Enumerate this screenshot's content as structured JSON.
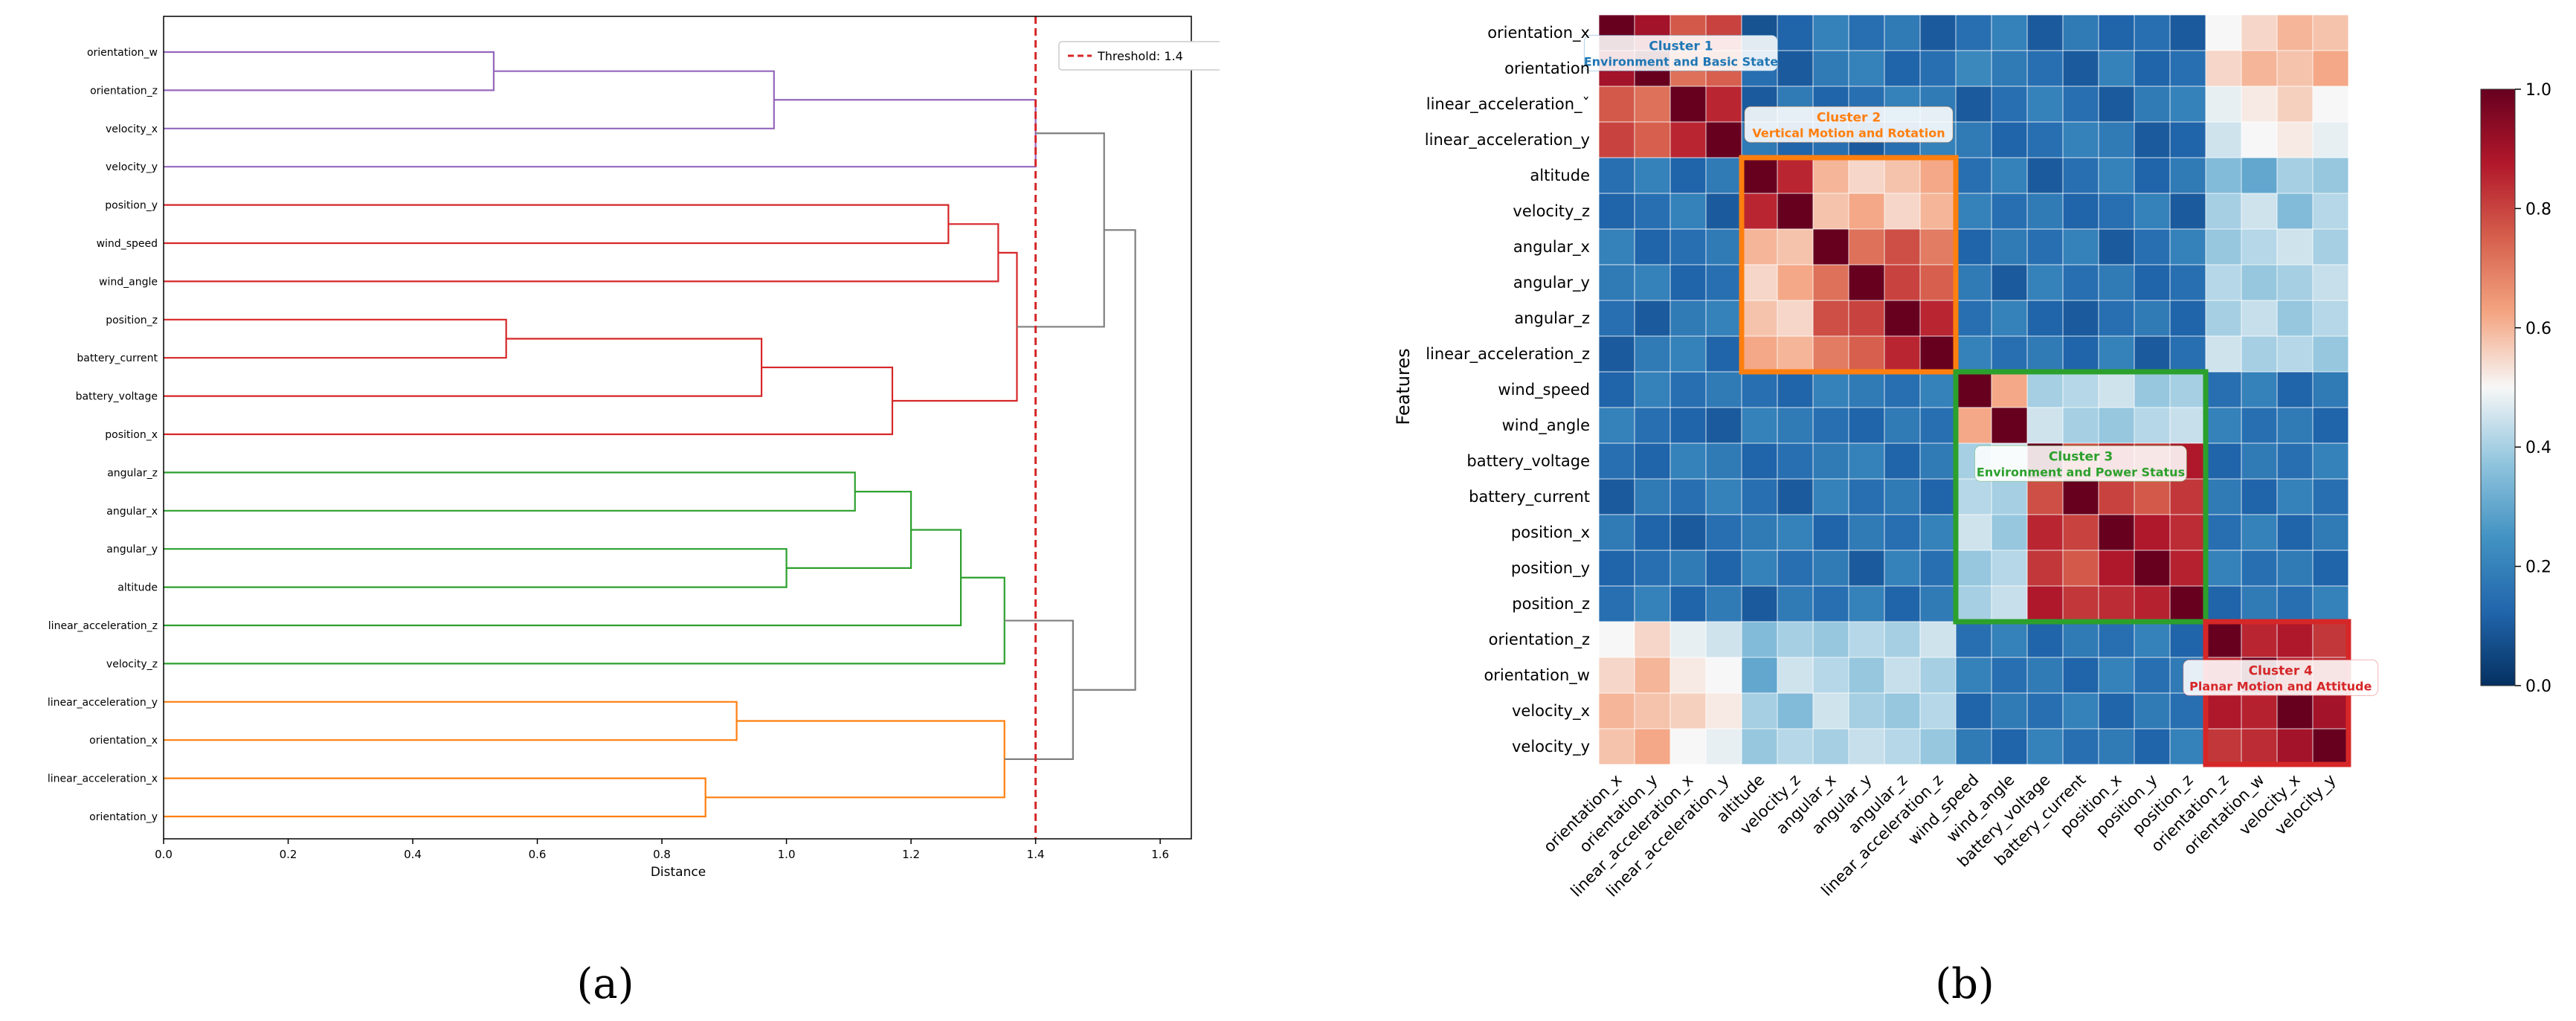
{
  "colors": {
    "cluster1": "#ff7f0e",
    "cluster2": "#d62728",
    "cluster3": "#2ca02c",
    "cluster4": "#9467bd",
    "link": "#7f7f7f",
    "threshold": "#d62728",
    "hm_cluster1": "#1f77b4",
    "hm_cluster2": "#ff7f0e",
    "hm_cluster3": "#2ca02c",
    "hm_cluster4": "#d62728"
  },
  "captions": {
    "a": "(a)",
    "b": "(b)"
  },
  "chart_data": [
    {
      "type": "dendrogram",
      "xlabel": "Distance",
      "xlim": [
        0,
        1.65
      ],
      "xticks": [
        0.0,
        0.2,
        0.4,
        0.6,
        0.8,
        1.0,
        1.2,
        1.4,
        1.6
      ],
      "threshold": 1.4,
      "legend": {
        "label": "Threshold: 1.4",
        "location": "top-right"
      },
      "leaves": [
        "orientation_w",
        "orientation_z",
        "velocity_x",
        "velocity_y",
        "position_y",
        "wind_speed",
        "wind_angle",
        "position_z",
        "battery_current",
        "battery_voltage",
        "position_x",
        "angular_z",
        "angular_x",
        "angular_y",
        "altitude",
        "linear_acceleration_z",
        "velocity_z",
        "linear_acceleration_y",
        "orientation_x",
        "linear_acceleration_x",
        "orientation_y"
      ],
      "merges": [
        {
          "id": "A",
          "children": [
            "orientation_w",
            "orientation_z"
          ],
          "distance": 0.53,
          "color": "cluster4"
        },
        {
          "id": "B",
          "children": [
            "A",
            "velocity_x"
          ],
          "distance": 0.98,
          "color": "cluster4"
        },
        {
          "id": "C",
          "children": [
            "B",
            "velocity_y"
          ],
          "distance": 1.4,
          "color": "cluster4"
        },
        {
          "id": "D",
          "children": [
            "position_y",
            "wind_speed"
          ],
          "distance": 1.26,
          "color": "cluster2"
        },
        {
          "id": "E",
          "children": [
            "D",
            "wind_angle"
          ],
          "distance": 1.34,
          "color": "cluster2"
        },
        {
          "id": "F",
          "children": [
            "position_z",
            "battery_current"
          ],
          "distance": 0.55,
          "color": "cluster2"
        },
        {
          "id": "G",
          "children": [
            "F",
            "battery_voltage"
          ],
          "distance": 0.96,
          "color": "cluster2"
        },
        {
          "id": "H",
          "children": [
            "G",
            "position_x"
          ],
          "distance": 1.17,
          "color": "cluster2"
        },
        {
          "id": "I",
          "children": [
            "E",
            "H"
          ],
          "distance": 1.37,
          "color": "cluster2"
        },
        {
          "id": "J",
          "children": [
            "angular_y",
            "altitude"
          ],
          "distance": 1.0,
          "color": "cluster3"
        },
        {
          "id": "K",
          "children": [
            "angular_z",
            "angular_x"
          ],
          "distance": 1.11,
          "color": "cluster3"
        },
        {
          "id": "L",
          "children": [
            "K",
            "J"
          ],
          "distance": 1.2,
          "color": "cluster3"
        },
        {
          "id": "M",
          "children": [
            "L",
            "linear_acceleration_z"
          ],
          "distance": 1.28,
          "color": "cluster3"
        },
        {
          "id": "N",
          "children": [
            "M",
            "velocity_z"
          ],
          "distance": 1.35,
          "color": "cluster3"
        },
        {
          "id": "O",
          "children": [
            "linear_acceleration_y",
            "orientation_x"
          ],
          "distance": 0.92,
          "color": "cluster1"
        },
        {
          "id": "P",
          "children": [
            "linear_acceleration_x",
            "orientation_y"
          ],
          "distance": 0.87,
          "color": "cluster1"
        },
        {
          "id": "Q",
          "children": [
            "O",
            "P"
          ],
          "distance": 1.35,
          "color": "cluster1"
        },
        {
          "id": "R",
          "children": [
            "C",
            "I"
          ],
          "distance": 1.51,
          "color": "link"
        },
        {
          "id": "S",
          "children": [
            "N",
            "Q"
          ],
          "distance": 1.46,
          "color": "link"
        },
        {
          "id": "T",
          "children": [
            "R",
            "S"
          ],
          "distance": 1.56,
          "color": "link"
        }
      ]
    },
    {
      "type": "heatmap",
      "ylabel": "Features",
      "features": [
        "orientation_x",
        "orientation_y",
        "linear_acceleration_x",
        "linear_acceleration_y",
        "altitude",
        "velocity_z",
        "angular_x",
        "angular_y",
        "angular_z",
        "linear_acceleration_z",
        "wind_speed",
        "wind_angle",
        "battery_voltage",
        "battery_current",
        "position_x",
        "position_y",
        "position_z",
        "orientation_z",
        "orientation_w",
        "velocity_x",
        "velocity_y"
      ],
      "row_labels": [
        "orientation_x",
        "orientation",
        "linear_acceleration_ˇ",
        "linear_acceleration_y",
        "altitude",
        "velocity_z",
        "angular_x",
        "angular_y",
        "angular_z",
        "linear_acceleration_z",
        "wind_speed",
        "wind_angle",
        "battery_voltage",
        "battery_current",
        "position_x",
        "position_y",
        "position_z",
        "orientation_z",
        "orientation_w",
        "velocity_x",
        "velocity_y"
      ],
      "colorbar": {
        "range": [
          0.0,
          1.0
        ],
        "ticks": [
          "0.0",
          "0.2",
          "0.4",
          "0.6",
          "0.8",
          "1.0"
        ],
        "colormap": "RdBu_r"
      },
      "clusters": [
        {
          "name": "Cluster 1",
          "label": "Environment and Basic State",
          "start": 0,
          "end": 3,
          "color": "hm_cluster1"
        },
        {
          "name": "Cluster 2",
          "label": "Vertical Motion and Rotation",
          "start": 4,
          "end": 9,
          "color": "hm_cluster2"
        },
        {
          "name": "Cluster 3",
          "label": "Environment and Power Status",
          "start": 10,
          "end": 16,
          "color": "hm_cluster3"
        },
        {
          "name": "Cluster 4",
          "label": "Planar Motion and Attitude",
          "start": 17,
          "end": 20,
          "color": "hm_cluster4"
        }
      ],
      "matrix": [
        [
          1.0,
          0.9,
          0.76,
          0.8,
          0.08,
          0.12,
          0.2,
          0.15,
          0.18,
          0.1,
          0.15,
          0.2,
          0.1,
          0.18,
          0.12,
          0.15,
          0.1,
          0.5,
          0.55,
          0.6,
          0.58
        ],
        [
          0.9,
          1.0,
          0.72,
          0.75,
          0.15,
          0.1,
          0.18,
          0.2,
          0.12,
          0.15,
          0.22,
          0.18,
          0.15,
          0.1,
          0.2,
          0.12,
          0.15,
          0.55,
          0.6,
          0.58,
          0.62
        ],
        [
          0.76,
          0.72,
          1.0,
          0.85,
          0.1,
          0.18,
          0.12,
          0.15,
          0.2,
          0.18,
          0.1,
          0.15,
          0.2,
          0.15,
          0.1,
          0.18,
          0.2,
          0.48,
          0.52,
          0.56,
          0.5
        ],
        [
          0.8,
          0.75,
          0.85,
          1.0,
          0.18,
          0.12,
          0.15,
          0.1,
          0.15,
          0.2,
          0.18,
          0.12,
          0.15,
          0.2,
          0.18,
          0.1,
          0.12,
          0.45,
          0.5,
          0.52,
          0.48
        ],
        [
          0.15,
          0.2,
          0.12,
          0.18,
          1.0,
          0.85,
          0.6,
          0.55,
          0.58,
          0.62,
          0.15,
          0.2,
          0.1,
          0.15,
          0.2,
          0.12,
          0.18,
          0.35,
          0.3,
          0.4,
          0.38
        ],
        [
          0.12,
          0.15,
          0.2,
          0.1,
          0.85,
          1.0,
          0.58,
          0.62,
          0.55,
          0.6,
          0.2,
          0.15,
          0.18,
          0.12,
          0.15,
          0.2,
          0.1,
          0.4,
          0.45,
          0.35,
          0.42
        ],
        [
          0.2,
          0.12,
          0.15,
          0.18,
          0.6,
          0.58,
          1.0,
          0.72,
          0.78,
          0.7,
          0.12,
          0.18,
          0.15,
          0.2,
          0.1,
          0.15,
          0.2,
          0.38,
          0.42,
          0.45,
          0.4
        ],
        [
          0.18,
          0.2,
          0.12,
          0.15,
          0.55,
          0.62,
          0.72,
          1.0,
          0.8,
          0.75,
          0.18,
          0.1,
          0.2,
          0.15,
          0.18,
          0.12,
          0.15,
          0.42,
          0.38,
          0.4,
          0.44
        ],
        [
          0.15,
          0.1,
          0.18,
          0.2,
          0.58,
          0.55,
          0.78,
          0.8,
          1.0,
          0.85,
          0.15,
          0.2,
          0.12,
          0.1,
          0.15,
          0.18,
          0.12,
          0.4,
          0.44,
          0.38,
          0.42
        ],
        [
          0.1,
          0.18,
          0.2,
          0.12,
          0.62,
          0.6,
          0.7,
          0.75,
          0.85,
          1.0,
          0.2,
          0.15,
          0.18,
          0.12,
          0.2,
          0.1,
          0.15,
          0.45,
          0.4,
          0.42,
          0.38
        ],
        [
          0.12,
          0.2,
          0.15,
          0.18,
          0.15,
          0.12,
          0.2,
          0.18,
          0.15,
          0.2,
          1.0,
          0.62,
          0.4,
          0.42,
          0.45,
          0.38,
          0.4,
          0.15,
          0.2,
          0.12,
          0.18
        ],
        [
          0.2,
          0.15,
          0.12,
          0.1,
          0.2,
          0.18,
          0.15,
          0.12,
          0.18,
          0.15,
          0.62,
          1.0,
          0.45,
          0.4,
          0.38,
          0.42,
          0.44,
          0.2,
          0.15,
          0.18,
          0.12
        ],
        [
          0.15,
          0.12,
          0.2,
          0.18,
          0.12,
          0.15,
          0.18,
          0.2,
          0.12,
          0.18,
          0.4,
          0.45,
          1.0,
          0.78,
          0.85,
          0.82,
          0.88,
          0.12,
          0.18,
          0.15,
          0.2
        ],
        [
          0.1,
          0.18,
          0.15,
          0.2,
          0.15,
          0.1,
          0.2,
          0.15,
          0.18,
          0.12,
          0.42,
          0.4,
          0.78,
          1.0,
          0.8,
          0.76,
          0.82,
          0.18,
          0.12,
          0.2,
          0.15
        ],
        [
          0.18,
          0.12,
          0.1,
          0.15,
          0.18,
          0.2,
          0.12,
          0.18,
          0.15,
          0.2,
          0.45,
          0.38,
          0.85,
          0.8,
          1.0,
          0.88,
          0.84,
          0.15,
          0.2,
          0.12,
          0.18
        ],
        [
          0.12,
          0.15,
          0.18,
          0.12,
          0.2,
          0.15,
          0.18,
          0.1,
          0.2,
          0.15,
          0.38,
          0.42,
          0.82,
          0.76,
          0.88,
          1.0,
          0.86,
          0.2,
          0.15,
          0.18,
          0.12
        ],
        [
          0.15,
          0.2,
          0.12,
          0.18,
          0.1,
          0.18,
          0.15,
          0.2,
          0.12,
          0.18,
          0.4,
          0.44,
          0.88,
          0.82,
          0.84,
          0.86,
          1.0,
          0.12,
          0.18,
          0.15,
          0.2
        ],
        [
          0.5,
          0.55,
          0.48,
          0.45,
          0.35,
          0.4,
          0.38,
          0.42,
          0.4,
          0.45,
          0.15,
          0.2,
          0.12,
          0.18,
          0.15,
          0.2,
          0.12,
          1.0,
          0.85,
          0.88,
          0.82
        ],
        [
          0.55,
          0.6,
          0.52,
          0.5,
          0.3,
          0.45,
          0.42,
          0.38,
          0.44,
          0.4,
          0.2,
          0.15,
          0.18,
          0.12,
          0.2,
          0.15,
          0.18,
          0.85,
          1.0,
          0.86,
          0.84
        ],
        [
          0.6,
          0.58,
          0.56,
          0.52,
          0.4,
          0.35,
          0.45,
          0.4,
          0.38,
          0.42,
          0.12,
          0.18,
          0.15,
          0.2,
          0.12,
          0.18,
          0.15,
          0.88,
          0.86,
          1.0,
          0.9
        ],
        [
          0.58,
          0.62,
          0.5,
          0.48,
          0.38,
          0.42,
          0.4,
          0.44,
          0.42,
          0.38,
          0.18,
          0.12,
          0.2,
          0.15,
          0.18,
          0.12,
          0.2,
          0.82,
          0.84,
          0.9,
          1.0
        ]
      ]
    }
  ]
}
